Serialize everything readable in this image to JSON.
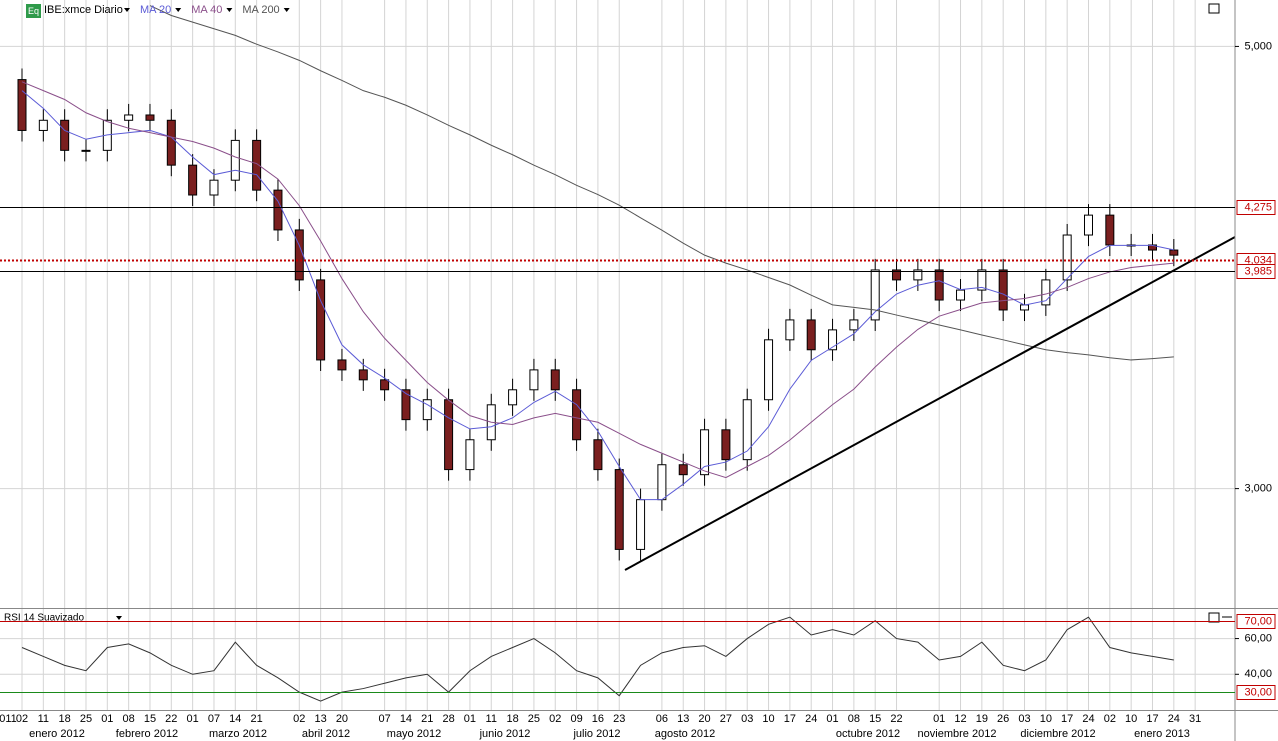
{
  "chart_data": [
    {
      "type": "candlestick",
      "badge": "Eq",
      "title": "IBE:xmce Diario",
      "x_start_label": "011",
      "categories": [
        "02",
        "11",
        "18",
        "25",
        "01",
        "08",
        "15",
        "22",
        "01",
        "07",
        "14",
        "21",
        null,
        "02",
        "13",
        "20",
        null,
        "07",
        "14",
        "21",
        "28",
        "01",
        "11",
        "18",
        "25",
        "02",
        "09",
        "16",
        "23",
        null,
        "06",
        "13",
        "20",
        "27",
        "03",
        "10",
        "17",
        "24",
        "01",
        "08",
        "15",
        "22",
        null,
        "01",
        "12",
        "19",
        "26",
        "03",
        "10",
        "17",
        "24",
        "02",
        "10",
        "17",
        "24",
        "31"
      ],
      "month_labels": [
        "enero 2012",
        "febrero 2012",
        "marzo 2012",
        "abril 2012",
        "mayo 2012",
        "junio 2012",
        "julio 2012",
        "agosto 2012",
        "octubre 2012",
        "noviembre 2012",
        "diciembre 2012",
        "enero 2013"
      ],
      "open": [
        4850,
        4620,
        4666,
        4530,
        4530,
        4666,
        4690,
        4666,
        4463,
        4328,
        4395,
        4575,
        4350,
        4170,
        3944,
        3582,
        3537,
        3492,
        3447,
        3312,
        3402,
        3086,
        3221,
        3379,
        3447,
        3537,
        3447,
        3221,
        3086,
        2725,
        2950,
        3108,
        3063,
        3266,
        3131,
        3402,
        3673,
        3763,
        3628,
        3718,
        3763,
        3989,
        3944,
        3989,
        3853,
        3898,
        3989,
        3808,
        3831,
        3944,
        4147,
        4237,
        4102,
        4102,
        4079,
        null
      ],
      "high": [
        4900,
        4716,
        4716,
        4580,
        4716,
        4740,
        4740,
        4716,
        4513,
        4445,
        4625,
        4625,
        4400,
        4220,
        3994,
        3632,
        3587,
        3542,
        3497,
        3452,
        3452,
        3271,
        3429,
        3497,
        3587,
        3587,
        3497,
        3271,
        3136,
        3000,
        3158,
        3158,
        3316,
        3316,
        3452,
        3723,
        3813,
        3813,
        3768,
        3813,
        4039,
        4039,
        4039,
        4039,
        3948,
        4039,
        4039,
        3881,
        3994,
        4197,
        4287,
        4287,
        4152,
        4152,
        4129,
        null
      ],
      "low": [
        4570,
        4570,
        4480,
        4480,
        4480,
        4616,
        4616,
        4413,
        4278,
        4278,
        4345,
        4300,
        4120,
        3894,
        3532,
        3487,
        3442,
        3397,
        3262,
        3262,
        3036,
        3036,
        3171,
        3329,
        3397,
        3397,
        3171,
        3036,
        2675,
        2675,
        2900,
        3013,
        3013,
        3081,
        3081,
        3352,
        3623,
        3578,
        3578,
        3668,
        3713,
        3894,
        3894,
        3803,
        3803,
        3848,
        3758,
        3758,
        3781,
        3894,
        4097,
        4052,
        4052,
        4029,
        4006,
        null
      ],
      "close": [
        4620,
        4666,
        4530,
        4530,
        4666,
        4690,
        4666,
        4463,
        4328,
        4395,
        4575,
        4350,
        4170,
        3944,
        3582,
        3537,
        3492,
        3447,
        3312,
        3402,
        3086,
        3221,
        3379,
        3447,
        3537,
        3447,
        3221,
        3086,
        2725,
        2950,
        3108,
        3063,
        3266,
        3131,
        3402,
        3673,
        3763,
        3628,
        3718,
        3763,
        3989,
        3944,
        3989,
        3853,
        3898,
        3989,
        3808,
        3831,
        3944,
        4147,
        4237,
        4102,
        4102,
        4079,
        4056,
        null
      ],
      "up_color": "#ffffff",
      "down_color": "#7a1f1f",
      "series": [
        {
          "name": "MA 20",
          "color": "#5b5bd6",
          "values": [
            4800,
            4720,
            4620,
            4580,
            4600,
            4610,
            4620,
            4590,
            4500,
            4420,
            4440,
            4420,
            4300,
            4100,
            3850,
            3650,
            3560,
            3500,
            3430,
            3380,
            3320,
            3270,
            3280,
            3320,
            3390,
            3440,
            3380,
            3260,
            3100,
            2950,
            2950,
            3020,
            3100,
            3120,
            3170,
            3280,
            3450,
            3580,
            3640,
            3700,
            3800,
            3880,
            3920,
            3940,
            3900,
            3910,
            3880,
            3830,
            3850,
            3950,
            4050,
            4100,
            4100,
            4100,
            4080,
            null
          ]
        },
        {
          "name": "MA 40",
          "color": "#8a4f8a",
          "values": [
            4840,
            4800,
            4760,
            4700,
            4660,
            4630,
            4610,
            4590,
            4570,
            4540,
            4500,
            4470,
            4400,
            4280,
            4120,
            3950,
            3800,
            3680,
            3580,
            3480,
            3400,
            3330,
            3300,
            3290,
            3320,
            3340,
            3320,
            3300,
            3250,
            3200,
            3160,
            3120,
            3080,
            3050,
            3100,
            3150,
            3220,
            3300,
            3380,
            3450,
            3550,
            3640,
            3720,
            3780,
            3810,
            3840,
            3850,
            3860,
            3880,
            3910,
            3950,
            3980,
            4000,
            4010,
            4020,
            null
          ]
        },
        {
          "name": "MA 200",
          "color": "#555555",
          "values": [
            null,
            null,
            null,
            null,
            null,
            null,
            5185,
            5140,
            5110,
            5080,
            5050,
            5010,
            4975,
            4937,
            4890,
            4846,
            4800,
            4770,
            4734,
            4690,
            4643,
            4600,
            4553,
            4510,
            4463,
            4420,
            4372,
            4330,
            4282,
            4225,
            4169,
            4110,
            4056,
            4020,
            3989,
            3955,
            3921,
            3875,
            3831,
            3820,
            3808,
            3785,
            3763,
            3740,
            3718,
            3695,
            3673,
            3650,
            3628,
            3615,
            3605,
            3592,
            3582,
            3588,
            3596,
            null
          ]
        }
      ],
      "ylim": [
        2460,
        5210
      ],
      "yticks": [
        {
          "value": 3000,
          "label": "3,000"
        },
        {
          "value": 5000,
          "label": "5,000"
        }
      ],
      "levels": [
        {
          "value": 4275,
          "label": "4,275",
          "color": "#000000",
          "dashed": false
        },
        {
          "value": 4034,
          "label": "4,034",
          "color": "#c00000",
          "dashed": true
        },
        {
          "value": 3985,
          "label": "3,985",
          "color": "#000000",
          "dashed": false
        }
      ],
      "grid": true
    },
    {
      "type": "line",
      "title": "RSI 14 Suavizado",
      "series": [
        {
          "color": "#333333",
          "values": [
            55,
            50,
            45,
            42,
            55,
            57,
            52,
            45,
            40,
            42,
            58,
            45,
            38,
            30,
            25,
            30,
            32,
            35,
            38,
            40,
            30,
            42,
            50,
            55,
            60,
            52,
            42,
            38,
            28,
            45,
            52,
            55,
            56,
            50,
            60,
            68,
            72,
            62,
            65,
            62,
            70,
            60,
            58,
            48,
            50,
            58,
            45,
            42,
            48,
            65,
            72,
            55,
            52,
            50,
            48,
            null
          ]
        }
      ],
      "ylim": [
        20,
        76
      ],
      "yticks": [
        {
          "value": 40,
          "label": "40,00"
        },
        {
          "value": 60,
          "label": "60,00"
        }
      ],
      "levels": [
        {
          "value": 70,
          "label": "70,00",
          "color": "#c00000"
        },
        {
          "value": 30,
          "label": "30,00",
          "color": "#1a8a1a"
        }
      ],
      "grid": true
    }
  ]
}
